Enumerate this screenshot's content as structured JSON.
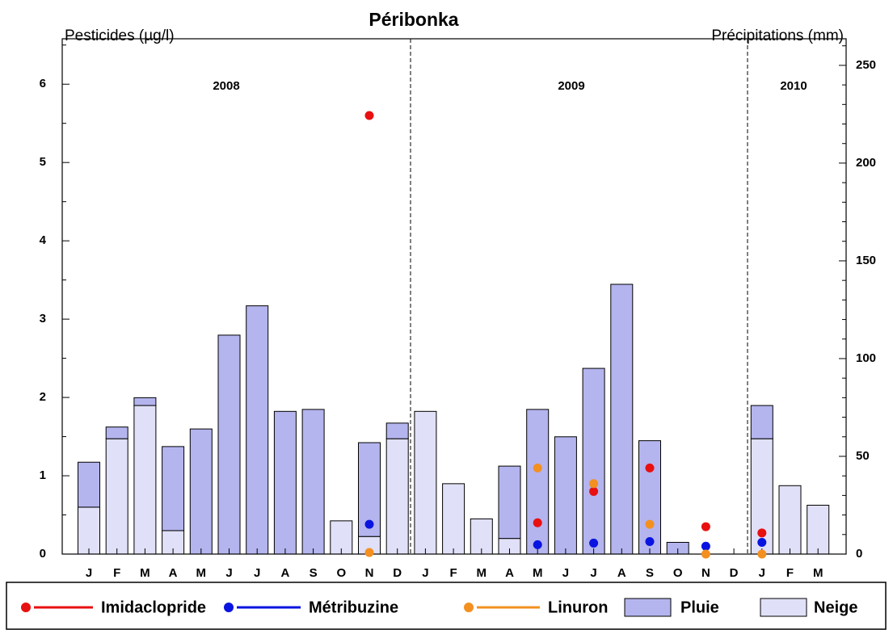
{
  "chart_data": {
    "type": "combo",
    "title": "Péribonka",
    "y_label": "Pesticides (µg/l)",
    "y2_label": "Précipitations (mm)",
    "categories": [
      "J",
      "F",
      "M",
      "A",
      "M",
      "J",
      "J",
      "A",
      "S",
      "O",
      "N",
      "D",
      "J",
      "F",
      "M",
      "A",
      "M",
      "J",
      "J",
      "A",
      "S",
      "O",
      "N",
      "D",
      "J",
      "F",
      "M"
    ],
    "annotations": [
      "2008",
      "2009",
      "2010"
    ],
    "ylim": [
      0,
      6.58
    ],
    "yticks": [
      0,
      1,
      2,
      3,
      4,
      5,
      6
    ],
    "y2lim": [
      0,
      263.6
    ],
    "y2ticks": [
      0,
      50,
      100,
      150,
      200,
      250
    ],
    "series": [
      {
        "name": "Imidaclopride",
        "kind": "line",
        "axis": "y",
        "color": "#e81010",
        "values": [
          null,
          null,
          null,
          null,
          null,
          null,
          null,
          null,
          null,
          null,
          5.6,
          null,
          null,
          null,
          null,
          null,
          0.4,
          null,
          0.8,
          null,
          1.1,
          null,
          0.35,
          null,
          0.27,
          null,
          null
        ]
      },
      {
        "name": "Métribuzine",
        "kind": "line",
        "axis": "y",
        "color": "#0a14e0",
        "values": [
          null,
          null,
          null,
          null,
          null,
          null,
          null,
          null,
          null,
          null,
          0.38,
          null,
          null,
          null,
          null,
          null,
          0.12,
          null,
          0.14,
          null,
          0.16,
          null,
          0.1,
          null,
          0.15,
          null,
          null
        ]
      },
      {
        "name": "Linuron",
        "kind": "line",
        "axis": "y",
        "color": "#f39020",
        "values": [
          null,
          null,
          null,
          null,
          null,
          null,
          null,
          null,
          null,
          null,
          0.02,
          null,
          null,
          null,
          null,
          null,
          1.1,
          null,
          0.9,
          null,
          0.38,
          null,
          0,
          null,
          0,
          null,
          null
        ]
      },
      {
        "name": "Pluie",
        "kind": "bar",
        "axis": "y2",
        "color": "#b4b4ee",
        "values": [
          23,
          6,
          4,
          43,
          64,
          112,
          127,
          73,
          74,
          0,
          48,
          8,
          0,
          0,
          0,
          37,
          74,
          60,
          95,
          138,
          58,
          6,
          0,
          0,
          17,
          0,
          0
        ]
      },
      {
        "name": "Neige",
        "kind": "bar",
        "axis": "y2",
        "color": "#e0e0f8",
        "values": [
          24,
          59,
          76,
          12,
          0,
          0,
          0,
          0,
          0,
          17,
          9,
          59,
          73,
          36,
          18,
          8,
          0,
          0,
          0,
          0,
          0,
          0,
          0,
          0,
          59,
          35,
          25
        ]
      }
    ]
  }
}
